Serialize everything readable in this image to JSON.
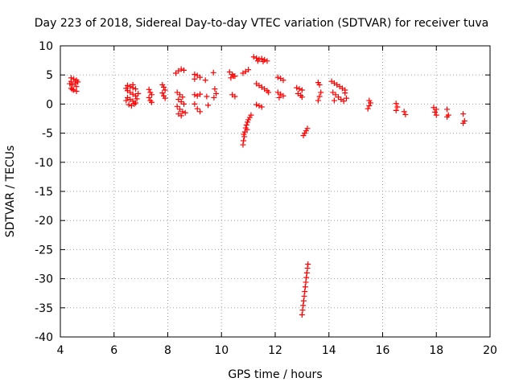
{
  "chart_data": {
    "type": "scatter",
    "title": "Day 223 of 2018, Sidereal Day-to-day VTEC variation (SDTVAR) for receiver tuva",
    "xlabel": "GPS time / hours",
    "ylabel": "SDTVAR / TECUs",
    "xlim": [
      4,
      20
    ],
    "ylim": [
      -40,
      10
    ],
    "xticks": [
      4,
      6,
      8,
      10,
      12,
      14,
      16,
      18,
      20
    ],
    "yticks": [
      10,
      5,
      0,
      -5,
      -10,
      -15,
      -20,
      -25,
      -30,
      -35,
      -40
    ],
    "grid": true,
    "marker": "+",
    "color": "#ff0000",
    "series": [
      {
        "name": "SDTVAR",
        "points": [
          [
            4.4,
            4.5
          ],
          [
            4.5,
            4.3
          ],
          [
            4.6,
            4.1
          ],
          [
            4.4,
            3.9
          ],
          [
            4.55,
            3.6
          ],
          [
            4.45,
            3.3
          ],
          [
            4.6,
            3.0
          ],
          [
            4.4,
            2.7
          ],
          [
            4.5,
            2.4
          ],
          [
            4.6,
            2.2
          ],
          [
            4.45,
            2.5
          ],
          [
            4.35,
            3.5
          ],
          [
            4.65,
            3.8
          ],
          [
            6.5,
            3.2
          ],
          [
            6.6,
            3.0
          ],
          [
            6.7,
            2.8
          ],
          [
            6.8,
            2.6
          ],
          [
            6.5,
            2.3
          ],
          [
            6.6,
            2.0
          ],
          [
            6.7,
            1.7
          ],
          [
            6.8,
            1.4
          ],
          [
            6.5,
            1.1
          ],
          [
            6.6,
            0.8
          ],
          [
            6.7,
            0.5
          ],
          [
            6.8,
            0.2
          ],
          [
            6.55,
            -0.1
          ],
          [
            6.65,
            -0.3
          ],
          [
            6.75,
            0.0
          ],
          [
            6.85,
            0.9
          ],
          [
            6.45,
            0.6
          ],
          [
            6.9,
            1.8
          ],
          [
            6.45,
            2.7
          ],
          [
            6.7,
            3.3
          ],
          [
            7.3,
            2.5
          ],
          [
            7.35,
            2.0
          ],
          [
            7.4,
            1.6
          ],
          [
            7.3,
            1.1
          ],
          [
            7.35,
            0.6
          ],
          [
            7.4,
            0.3
          ],
          [
            7.8,
            3.3
          ],
          [
            7.85,
            2.9
          ],
          [
            7.9,
            2.4
          ],
          [
            7.8,
            1.9
          ],
          [
            7.85,
            1.4
          ],
          [
            7.9,
            1.0
          ],
          [
            8.3,
            5.3
          ],
          [
            8.4,
            5.7
          ],
          [
            8.5,
            6.0
          ],
          [
            8.6,
            5.8
          ],
          [
            8.35,
            2.0
          ],
          [
            8.45,
            1.6
          ],
          [
            8.55,
            1.2
          ],
          [
            8.4,
            0.8
          ],
          [
            8.5,
            0.4
          ],
          [
            8.6,
            0.0
          ],
          [
            8.35,
            -0.4
          ],
          [
            8.45,
            -0.9
          ],
          [
            8.55,
            -1.3
          ],
          [
            8.4,
            -1.7
          ],
          [
            8.5,
            -2.0
          ],
          [
            8.65,
            -1.5
          ],
          [
            9.0,
            5.1
          ],
          [
            9.1,
            4.9
          ],
          [
            9.2,
            4.6
          ],
          [
            9.0,
            4.3
          ],
          [
            9.0,
            1.6
          ],
          [
            9.1,
            1.4
          ],
          [
            9.2,
            1.7
          ],
          [
            9.0,
            0.0
          ],
          [
            9.1,
            -0.8
          ],
          [
            9.2,
            -1.3
          ],
          [
            9.4,
            4.1
          ],
          [
            9.45,
            1.3
          ],
          [
            9.5,
            -0.2
          ],
          [
            9.7,
            5.4
          ],
          [
            9.75,
            2.6
          ],
          [
            9.8,
            1.8
          ],
          [
            9.72,
            1.1
          ],
          [
            10.3,
            5.5
          ],
          [
            10.4,
            5.1
          ],
          [
            10.5,
            4.8
          ],
          [
            10.35,
            4.5
          ],
          [
            10.45,
            4.8
          ],
          [
            10.4,
            1.6
          ],
          [
            10.5,
            1.3
          ],
          [
            10.8,
            5.3
          ],
          [
            10.9,
            5.6
          ],
          [
            11.0,
            5.9
          ],
          [
            10.8,
            -7.0
          ],
          [
            10.82,
            -6.3
          ],
          [
            10.85,
            -5.6
          ],
          [
            10.87,
            -4.8
          ],
          [
            10.9,
            -4.1
          ],
          [
            10.93,
            -3.6
          ],
          [
            10.97,
            -3.1
          ],
          [
            11.0,
            -2.7
          ],
          [
            11.05,
            -2.3
          ],
          [
            11.1,
            -1.9
          ],
          [
            10.95,
            -4.4
          ],
          [
            10.83,
            -5.2
          ],
          [
            11.2,
            8.1
          ],
          [
            11.3,
            7.9
          ],
          [
            11.4,
            7.7
          ],
          [
            11.5,
            7.8
          ],
          [
            11.6,
            7.6
          ],
          [
            11.7,
            7.4
          ],
          [
            11.35,
            7.4
          ],
          [
            11.55,
            7.3
          ],
          [
            11.3,
            3.5
          ],
          [
            11.4,
            3.2
          ],
          [
            11.5,
            2.9
          ],
          [
            11.6,
            2.6
          ],
          [
            11.7,
            2.3
          ],
          [
            11.75,
            2.0
          ],
          [
            11.3,
            -0.1
          ],
          [
            11.4,
            -0.3
          ],
          [
            11.5,
            -0.5
          ],
          [
            12.1,
            4.6
          ],
          [
            12.2,
            4.4
          ],
          [
            12.3,
            4.1
          ],
          [
            12.1,
            2.0
          ],
          [
            12.2,
            1.7
          ],
          [
            12.3,
            1.4
          ],
          [
            12.15,
            1.1
          ],
          [
            12.8,
            2.8
          ],
          [
            12.9,
            2.6
          ],
          [
            13.0,
            2.4
          ],
          [
            12.85,
            1.8
          ],
          [
            12.95,
            1.5
          ],
          [
            13.0,
            1.2
          ],
          [
            13.05,
            -5.4
          ],
          [
            13.1,
            -5.0
          ],
          [
            13.15,
            -4.6
          ],
          [
            13.2,
            -4.2
          ],
          [
            13.0,
            -36.2
          ],
          [
            13.02,
            -35.4
          ],
          [
            13.04,
            -34.6
          ],
          [
            13.06,
            -33.8
          ],
          [
            13.08,
            -33.0
          ],
          [
            13.1,
            -32.2
          ],
          [
            13.12,
            -31.4
          ],
          [
            13.14,
            -30.6
          ],
          [
            13.16,
            -29.8
          ],
          [
            13.18,
            -29.0
          ],
          [
            13.2,
            -28.2
          ],
          [
            13.22,
            -27.5
          ],
          [
            13.6,
            3.7
          ],
          [
            13.65,
            3.3
          ],
          [
            13.7,
            2.0
          ],
          [
            13.65,
            1.3
          ],
          [
            13.6,
            0.6
          ],
          [
            14.1,
            3.9
          ],
          [
            14.2,
            3.6
          ],
          [
            14.3,
            3.3
          ],
          [
            14.4,
            3.0
          ],
          [
            14.5,
            2.7
          ],
          [
            14.6,
            2.4
          ],
          [
            14.15,
            2.0
          ],
          [
            14.25,
            1.6
          ],
          [
            14.35,
            1.2
          ],
          [
            14.45,
            0.8
          ],
          [
            14.55,
            0.5
          ],
          [
            14.65,
            1.0
          ],
          [
            14.2,
            0.6
          ],
          [
            14.6,
            1.9
          ],
          [
            15.5,
            0.6
          ],
          [
            15.55,
            0.2
          ],
          [
            15.5,
            -0.3
          ],
          [
            15.45,
            -0.8
          ],
          [
            16.5,
            0.1
          ],
          [
            16.55,
            -0.5
          ],
          [
            16.5,
            -1.1
          ],
          [
            16.8,
            -1.3
          ],
          [
            16.85,
            -1.8
          ],
          [
            17.9,
            -0.6
          ],
          [
            18.0,
            -0.9
          ],
          [
            17.95,
            -1.4
          ],
          [
            18.0,
            -1.9
          ],
          [
            18.4,
            -0.9
          ],
          [
            18.45,
            -1.9
          ],
          [
            18.4,
            -2.2
          ],
          [
            19.0,
            -1.7
          ],
          [
            19.05,
            -2.9
          ],
          [
            19.0,
            -3.3
          ]
        ]
      }
    ]
  }
}
